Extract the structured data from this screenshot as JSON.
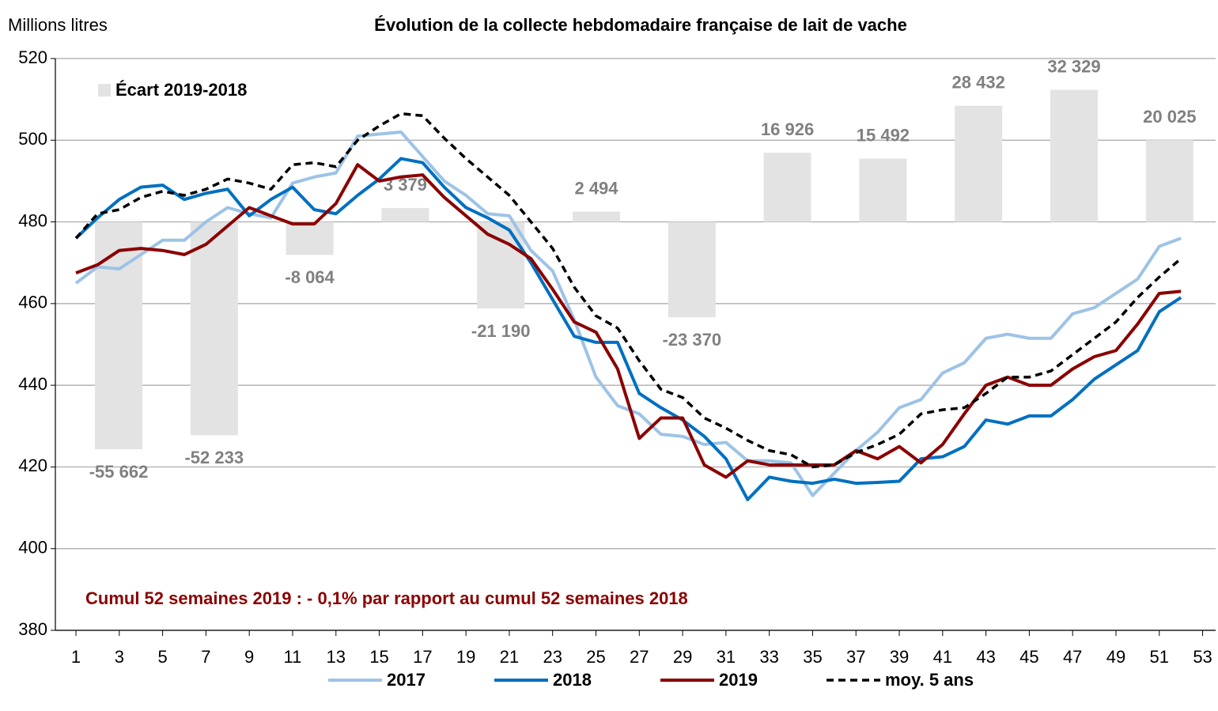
{
  "chart_data": {
    "type": "line",
    "title": "Évolution de la collecte hebdomadaire française de lait de vache",
    "y_axis_label": "Millions litres",
    "annotation": "Cumul 52 semaines 2019 : - 0,1% par rapport au cumul 52 semaines 2018",
    "x": [
      1,
      2,
      3,
      4,
      5,
      6,
      7,
      8,
      9,
      10,
      11,
      12,
      13,
      14,
      15,
      16,
      17,
      18,
      19,
      20,
      21,
      22,
      23,
      24,
      25,
      26,
      27,
      28,
      29,
      30,
      31,
      32,
      33,
      34,
      35,
      36,
      37,
      38,
      39,
      40,
      41,
      42,
      43,
      44,
      45,
      46,
      47,
      48,
      49,
      50,
      51,
      52
    ],
    "xlim": [
      0.05,
      53.6
    ],
    "xticks": [
      1,
      3,
      5,
      7,
      9,
      11,
      13,
      15,
      17,
      19,
      21,
      23,
      25,
      27,
      29,
      31,
      33,
      35,
      37,
      39,
      41,
      43,
      45,
      47,
      49,
      51,
      53
    ],
    "ylim": [
      380,
      520
    ],
    "yticks": [
      380,
      400,
      420,
      440,
      460,
      480,
      500,
      520
    ],
    "grid": true,
    "series": [
      {
        "name": "2017",
        "color": "#9dc3e6",
        "dashed": false,
        "values": [
          465,
          469,
          468.5,
          472,
          475.5,
          475.5,
          480,
          483.5,
          482,
          481,
          489.5,
          491,
          492,
          501,
          501.5,
          502,
          496,
          490,
          486.5,
          482,
          481.5,
          473,
          468,
          456,
          442,
          435,
          433,
          428,
          427.5,
          425.5,
          426,
          421.5,
          421.5,
          421,
          413,
          418.5,
          424,
          428.5,
          434.5,
          436.5,
          443,
          445.5,
          451.5,
          452.5,
          451.5,
          451.5,
          457.5,
          459,
          462.5,
          466,
          474,
          476
        ]
      },
      {
        "name": "2018",
        "color": "#0070c0",
        "dashed": false,
        "values": [
          476,
          481,
          485.5,
          488.5,
          489,
          485.5,
          487,
          488,
          481.5,
          485.5,
          488.5,
          483,
          482,
          486.5,
          490.5,
          495.5,
          494.5,
          488.5,
          483.5,
          481,
          478,
          470,
          461,
          452,
          450.5,
          450.5,
          438,
          434.5,
          431.5,
          427.5,
          422,
          412,
          417.5,
          416.5,
          416,
          417,
          416,
          416.2,
          416.5,
          422,
          422.5,
          425,
          431.5,
          430.5,
          432.5,
          432.5,
          436.5,
          441.5,
          445,
          448.5,
          458,
          461.5
        ]
      },
      {
        "name": "2019",
        "color": "#8b0000",
        "dashed": false,
        "values": [
          467.5,
          469.5,
          473,
          473.5,
          473,
          472,
          474.5,
          479,
          483.5,
          481.5,
          479.5,
          479.5,
          484.5,
          494,
          490,
          491,
          491.5,
          486,
          481.5,
          477,
          474.5,
          471,
          463.5,
          455.5,
          453,
          444,
          427,
          432,
          432,
          420.5,
          417.5,
          421.5,
          420.5,
          420.5,
          420.5,
          420.5,
          424,
          422,
          425,
          421,
          425.5,
          433,
          440,
          442,
          440,
          440,
          444,
          447,
          448.5,
          455,
          462.5,
          463
        ]
      },
      {
        "name": "moy. 5 ans",
        "color": "#000000",
        "dashed": true,
        "values": [
          476,
          482,
          483,
          486,
          487.5,
          486.5,
          488,
          490.5,
          489.5,
          488,
          494,
          494.5,
          493.5,
          500,
          503.5,
          506.5,
          506,
          500.5,
          495.5,
          491,
          486.5,
          480,
          473.5,
          464,
          457,
          454,
          446,
          439,
          437,
          432,
          429.5,
          426.5,
          424,
          423,
          420,
          420.5,
          423.5,
          425.5,
          428,
          433,
          434,
          434.5,
          438,
          442,
          442,
          443.5,
          447.5,
          451.5,
          455.5,
          461.5,
          466.5,
          471
        ]
      }
    ],
    "bars": {
      "name": "Écart 2019-2018",
      "color": "#e3e3e3",
      "axis": "y2",
      "values": [
        -55662,
        -52233,
        -8064,
        3379,
        -21190,
        2494,
        -23370,
        16926,
        15492,
        28432,
        32329,
        20025
      ],
      "value_labels": [
        "-55 662",
        "-52 233",
        "-8 064",
        "3 379",
        "-21 190",
        "2 494",
        "-23 370",
        "16 926",
        "15 492",
        "28 432",
        "32 329",
        "20 025"
      ]
    },
    "y2lim": [
      -100000,
      40000
    ]
  }
}
